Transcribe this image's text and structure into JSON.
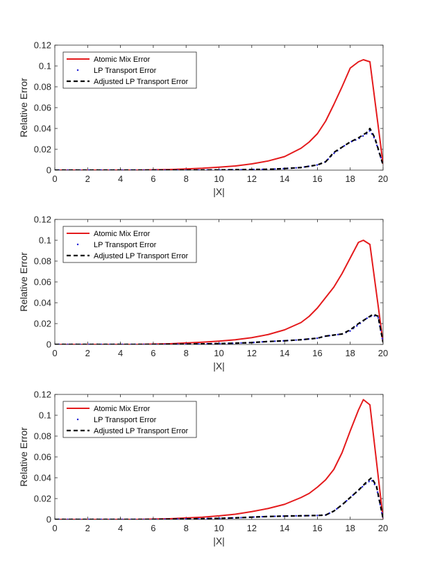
{
  "chart_data": [
    {
      "type": "line",
      "xlabel": "|X|",
      "ylabel": "Relative Error",
      "xlim": [
        0,
        20
      ],
      "ylim": [
        0,
        0.12
      ],
      "xticks": [
        0,
        2,
        4,
        6,
        8,
        10,
        12,
        14,
        16,
        18,
        20
      ],
      "yticks": [
        0,
        0.02,
        0.04,
        0.06,
        0.08,
        0.1,
        0.12
      ],
      "legend_position": "top-left",
      "series": [
        {
          "name": "Atomic Mix Error",
          "style": "solid",
          "color": "#e41a1c",
          "x": [
            0,
            1,
            2,
            3,
            4,
            5,
            6,
            7,
            8,
            9,
            10,
            11,
            12,
            13,
            14,
            15,
            15.5,
            16,
            16.5,
            17,
            17.5,
            18,
            18.5,
            18.8,
            19.2,
            20
          ],
          "y": [
            0,
            0,
            0,
            0,
            0,
            0,
            0.0003,
            0.0006,
            0.0012,
            0.0018,
            0.0028,
            0.004,
            0.006,
            0.0088,
            0.013,
            0.021,
            0.027,
            0.035,
            0.047,
            0.063,
            0.08,
            0.098,
            0.104,
            0.106,
            0.104,
            0.006
          ]
        },
        {
          "name": "LP Transport Error",
          "style": "dotted",
          "color": "#1f1fd6",
          "x": [
            0,
            2,
            4,
            6,
            8,
            10,
            11,
            12,
            13,
            14,
            15,
            16,
            16.5,
            17,
            17.5,
            18,
            18.5,
            19,
            19.2,
            19.5,
            20
          ],
          "y": [
            0,
            0,
            0,
            0,
            0,
            0.0002,
            0.0004,
            0.0006,
            0.0008,
            0.0015,
            0.0025,
            0.005,
            0.008,
            0.016,
            0.022,
            0.027,
            0.03,
            0.035,
            0.038,
            0.03,
            0.005
          ]
        },
        {
          "name": "Adjusted LP Transport Error",
          "style": "dashed",
          "color": "#000000",
          "x": [
            0,
            2,
            4,
            6,
            8,
            10,
            11,
            12,
            13,
            14,
            15,
            16,
            16.5,
            17,
            17.5,
            18,
            18.5,
            19,
            19.2,
            19.5,
            20
          ],
          "y": [
            0,
            0,
            0,
            0,
            0,
            0.0002,
            0.0004,
            0.0006,
            0.0008,
            0.0015,
            0.0025,
            0.005,
            0.008,
            0.017,
            0.022,
            0.027,
            0.031,
            0.036,
            0.04,
            0.031,
            0.005
          ]
        }
      ]
    },
    {
      "type": "line",
      "xlabel": "|X|",
      "ylabel": "Relative Error",
      "xlim": [
        0,
        20
      ],
      "ylim": [
        0,
        0.12
      ],
      "xticks": [
        0,
        2,
        4,
        6,
        8,
        10,
        12,
        14,
        16,
        18,
        20
      ],
      "yticks": [
        0,
        0.02,
        0.04,
        0.06,
        0.08,
        0.1,
        0.12
      ],
      "legend_position": "top-left",
      "series": [
        {
          "name": "Atomic Mix Error",
          "style": "solid",
          "color": "#e41a1c",
          "x": [
            0,
            1,
            2,
            3,
            4,
            5,
            6,
            7,
            8,
            9,
            10,
            11,
            12,
            13,
            14,
            15,
            15.5,
            16,
            16.5,
            17,
            17.5,
            18,
            18.5,
            18.8,
            19.2,
            20
          ],
          "y": [
            0,
            0,
            0,
            0,
            0,
            0,
            0.0003,
            0.0007,
            0.0014,
            0.0022,
            0.0032,
            0.0045,
            0.0065,
            0.0095,
            0.014,
            0.021,
            0.027,
            0.035,
            0.045,
            0.055,
            0.068,
            0.083,
            0.098,
            0.1,
            0.096,
            0.002
          ]
        },
        {
          "name": "LP Transport Error",
          "style": "dotted",
          "color": "#1f1fd6",
          "x": [
            0,
            2,
            4,
            6,
            8,
            10,
            11,
            12,
            13,
            14,
            15,
            16,
            16.5,
            17,
            17.5,
            18,
            18.5,
            19,
            19.4,
            19.7,
            20
          ],
          "y": [
            0,
            0,
            0,
            0,
            0.0003,
            0.0008,
            0.0012,
            0.0018,
            0.0028,
            0.0035,
            0.0045,
            0.006,
            0.008,
            0.009,
            0.01,
            0.013,
            0.019,
            0.025,
            0.028,
            0.026,
            0.002
          ]
        },
        {
          "name": "Adjusted LP Transport Error",
          "style": "dashed",
          "color": "#000000",
          "x": [
            0,
            2,
            4,
            6,
            8,
            10,
            11,
            12,
            13,
            14,
            15,
            16,
            16.5,
            17,
            17.5,
            18,
            18.5,
            19,
            19.4,
            19.7,
            20
          ],
          "y": [
            0,
            0,
            0,
            0,
            0.0003,
            0.0008,
            0.0012,
            0.0018,
            0.0028,
            0.0035,
            0.0045,
            0.006,
            0.008,
            0.009,
            0.01,
            0.014,
            0.02,
            0.025,
            0.029,
            0.027,
            0.002
          ]
        }
      ]
    },
    {
      "type": "line",
      "xlabel": "|X|",
      "ylabel": "Relative Error",
      "xlim": [
        0,
        20
      ],
      "ylim": [
        0,
        0.12
      ],
      "xticks": [
        0,
        2,
        4,
        6,
        8,
        10,
        12,
        14,
        16,
        18,
        20
      ],
      "yticks": [
        0,
        0.02,
        0.04,
        0.06,
        0.08,
        0.1,
        0.12
      ],
      "legend_position": "top-left",
      "series": [
        {
          "name": "Atomic Mix Error",
          "style": "solid",
          "color": "#e41a1c",
          "x": [
            0,
            1,
            2,
            3,
            4,
            5,
            6,
            7,
            8,
            9,
            10,
            11,
            12,
            13,
            14,
            15,
            15.5,
            16,
            16.5,
            17,
            17.5,
            18,
            18.5,
            18.8,
            19.2,
            20
          ],
          "y": [
            0,
            0,
            0,
            0,
            0,
            0,
            0.0003,
            0.0007,
            0.0014,
            0.0022,
            0.0034,
            0.005,
            0.0075,
            0.0105,
            0.0145,
            0.021,
            0.025,
            0.031,
            0.038,
            0.048,
            0.064,
            0.085,
            0.105,
            0.115,
            0.11,
            0.001
          ]
        },
        {
          "name": "LP Transport Error",
          "style": "dotted",
          "color": "#1f1fd6",
          "x": [
            0,
            2,
            4,
            6,
            8,
            10,
            11,
            12,
            13,
            14,
            15,
            16,
            16.5,
            17,
            17.5,
            18,
            18.5,
            19,
            19.3,
            19.6,
            20
          ],
          "y": [
            0,
            0,
            0,
            0,
            0.0005,
            0.001,
            0.0015,
            0.0022,
            0.0028,
            0.0032,
            0.0035,
            0.0038,
            0.0042,
            0.008,
            0.014,
            0.021,
            0.028,
            0.035,
            0.038,
            0.031,
            0.001
          ]
        },
        {
          "name": "Adjusted LP Transport Error",
          "style": "dashed",
          "color": "#000000",
          "x": [
            0,
            2,
            4,
            6,
            8,
            10,
            11,
            12,
            13,
            14,
            15,
            16,
            16.5,
            17,
            17.5,
            18,
            18.5,
            19,
            19.3,
            19.6,
            20
          ],
          "y": [
            0,
            0,
            0,
            0,
            0.0005,
            0.001,
            0.0015,
            0.0022,
            0.0028,
            0.0032,
            0.0035,
            0.0038,
            0.0042,
            0.008,
            0.014,
            0.021,
            0.028,
            0.036,
            0.04,
            0.032,
            0.001
          ]
        }
      ]
    }
  ]
}
